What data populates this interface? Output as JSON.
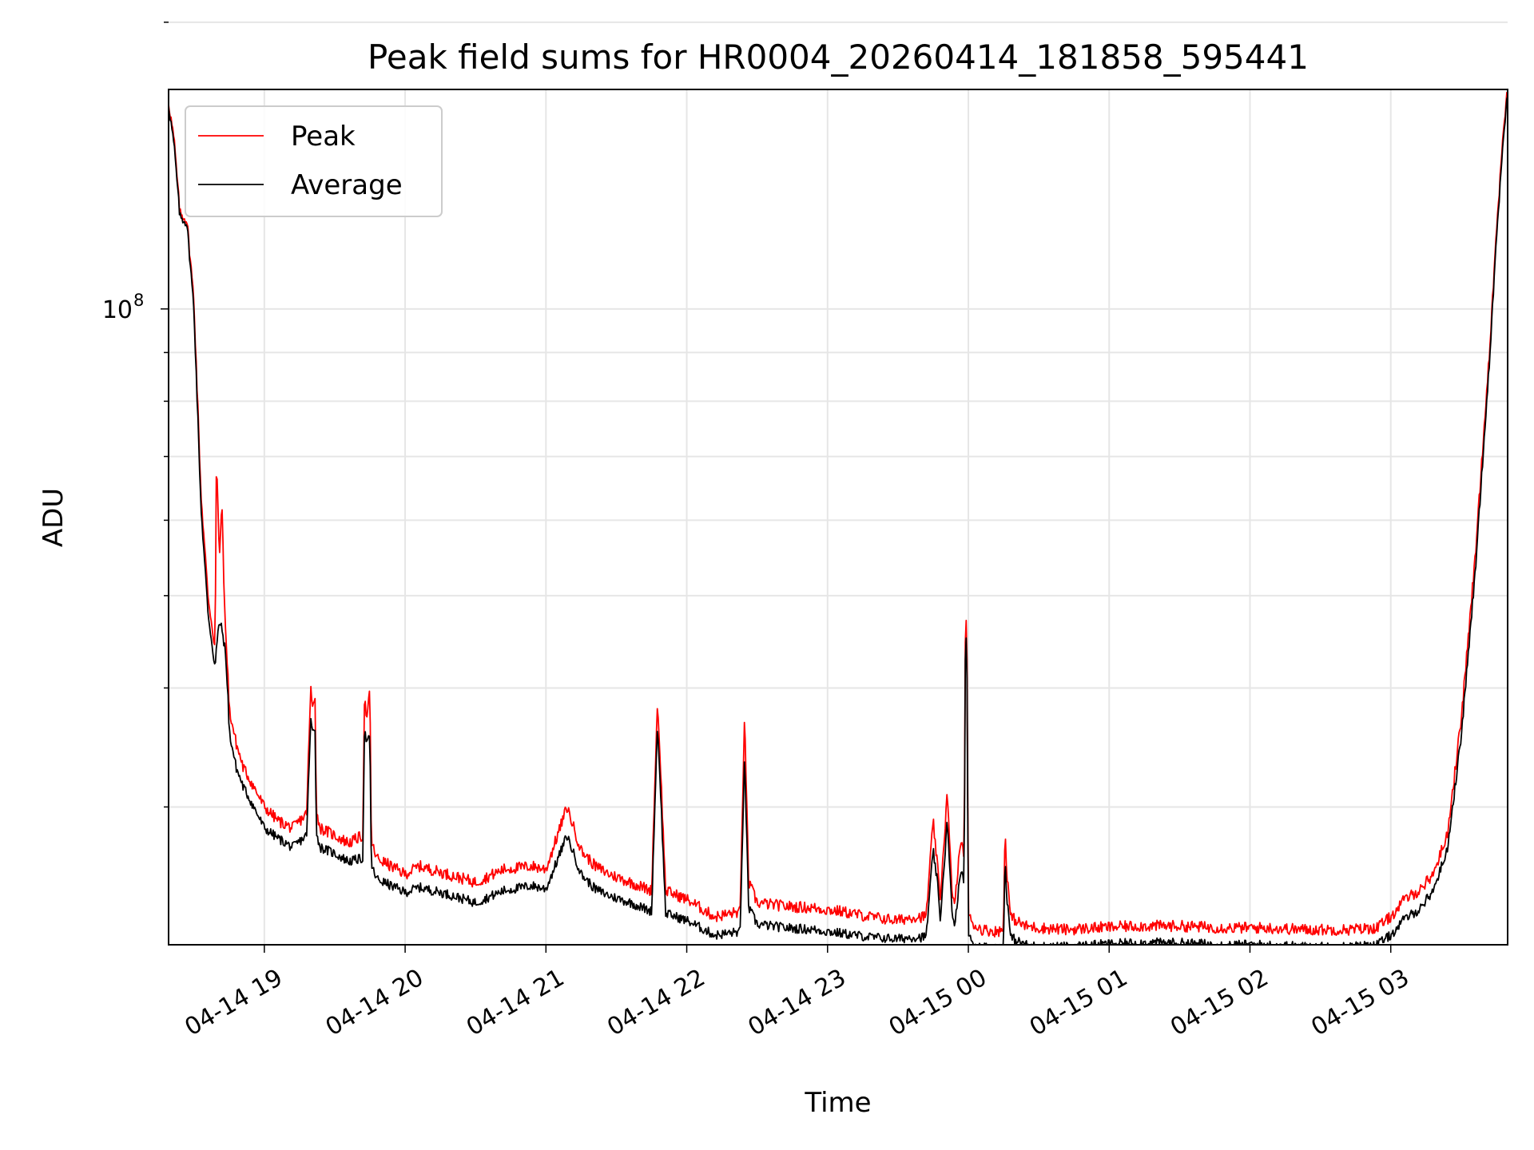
{
  "chart_data": {
    "type": "line",
    "title": "Peak field sums for HR0004_20260414_181858_595441",
    "xlabel": "Time",
    "ylabel": "ADU",
    "yscale": "log",
    "ylim": [
      21500000,
      170000000
    ],
    "xlim_hours": [
      18.32,
      27.83
    ],
    "grid": true,
    "legend_position": "upper-left",
    "x_ticks": [
      {
        "hour": 19,
        "label": "04-14 19"
      },
      {
        "hour": 20,
        "label": "04-14 20"
      },
      {
        "hour": 21,
        "label": "04-14 21"
      },
      {
        "hour": 22,
        "label": "04-14 22"
      },
      {
        "hour": 23,
        "label": "04-14 23"
      },
      {
        "hour": 24,
        "label": "04-15 00"
      },
      {
        "hour": 25,
        "label": "04-15 01"
      },
      {
        "hour": 26,
        "label": "04-15 02"
      },
      {
        "hour": 27,
        "label": "04-15 03"
      }
    ],
    "y_major_ticks": [
      {
        "value": 100000000,
        "label": "10",
        "exponent": "8"
      }
    ],
    "y_minor_ticks": [
      30000000,
      40000000,
      50000000,
      60000000,
      70000000,
      80000000,
      90000000,
      200000000
    ],
    "series": [
      {
        "name": "Peak",
        "color": "#ff0000",
        "x_hours": [
          18.32,
          18.36,
          18.4,
          18.45,
          18.5,
          18.55,
          18.6,
          18.65,
          18.66,
          18.68,
          18.7,
          18.72,
          18.74,
          18.75,
          18.8,
          18.85,
          18.9,
          19.0,
          19.1,
          19.2,
          19.3,
          19.33,
          19.34,
          19.36,
          19.37,
          19.4,
          19.5,
          19.6,
          19.7,
          19.71,
          19.73,
          19.75,
          19.76,
          19.8,
          19.9,
          20.0,
          20.1,
          20.3,
          20.5,
          20.7,
          20.9,
          21.0,
          21.15,
          21.25,
          21.35,
          21.45,
          21.6,
          21.75,
          21.79,
          21.8,
          21.85,
          22.0,
          22.2,
          22.38,
          22.41,
          22.44,
          22.5,
          22.7,
          22.9,
          23.1,
          23.3,
          23.5,
          23.6,
          23.7,
          23.75,
          23.78,
          23.8,
          23.85,
          23.88,
          23.9,
          23.95,
          23.97,
          23.98,
          23.99,
          24.0,
          24.05,
          24.1,
          24.2,
          24.25,
          24.26,
          24.27,
          24.3,
          24.4,
          24.5,
          24.7,
          24.9,
          25.2,
          25.5,
          25.8,
          26.1,
          26.4,
          26.7,
          26.9,
          27.0,
          27.1,
          27.2,
          27.3,
          27.4,
          27.5,
          27.6,
          27.7,
          27.75,
          27.8,
          27.83
        ],
        "y": [
          165000000,
          150000000,
          126000000,
          124000000,
          102000000,
          64000000,
          50000000,
          44000000,
          70000000,
          55000000,
          62000000,
          47000000,
          42000000,
          38000000,
          35000000,
          33000000,
          32000000,
          30000000,
          29000000,
          28500000,
          29500000,
          40000000,
          38000000,
          39500000,
          29500000,
          28500000,
          28000000,
          27500000,
          28000000,
          39000000,
          37000000,
          40000000,
          27500000,
          26500000,
          26000000,
          25500000,
          26000000,
          25500000,
          25000000,
          25800000,
          26000000,
          25800000,
          30000000,
          27000000,
          26000000,
          25500000,
          25000000,
          24500000,
          38000000,
          37000000,
          24500000,
          24000000,
          23000000,
          23300000,
          37500000,
          25000000,
          23800000,
          23600000,
          23500000,
          23300000,
          23000000,
          22800000,
          23000000,
          23000000,
          29000000,
          26000000,
          24000000,
          31000000,
          25000000,
          23500000,
          28000000,
          26000000,
          50000000,
          44000000,
          23000000,
          22500000,
          22300000,
          22200000,
          22300000,
          29000000,
          26000000,
          23000000,
          22500000,
          22400000,
          22300000,
          22400000,
          22500000,
          22500000,
          22400000,
          22400000,
          22300000,
          22300000,
          22400000,
          23000000,
          24000000,
          24500000,
          25500000,
          28000000,
          37000000,
          55000000,
          90000000,
          120000000,
          155000000,
          170000000
        ]
      },
      {
        "name": "Average",
        "color": "#000000",
        "x_hours": [
          18.32,
          18.36,
          18.4,
          18.45,
          18.5,
          18.55,
          18.6,
          18.65,
          18.66,
          18.68,
          18.7,
          18.72,
          18.74,
          18.75,
          18.8,
          18.85,
          18.9,
          19.0,
          19.1,
          19.2,
          19.3,
          19.33,
          19.34,
          19.36,
          19.37,
          19.4,
          19.5,
          19.6,
          19.7,
          19.71,
          19.73,
          19.75,
          19.76,
          19.8,
          19.9,
          20.0,
          20.1,
          20.3,
          20.5,
          20.7,
          20.9,
          21.0,
          21.15,
          21.25,
          21.35,
          21.45,
          21.6,
          21.75,
          21.79,
          21.8,
          21.85,
          22.0,
          22.2,
          22.38,
          22.41,
          22.44,
          22.5,
          22.7,
          22.9,
          23.1,
          23.3,
          23.5,
          23.6,
          23.7,
          23.75,
          23.78,
          23.8,
          23.85,
          23.88,
          23.9,
          23.95,
          23.97,
          23.98,
          23.99,
          24.0,
          24.05,
          24.1,
          24.2,
          24.25,
          24.26,
          24.27,
          24.3,
          24.4,
          24.5,
          24.7,
          24.9,
          25.2,
          25.5,
          25.8,
          26.1,
          26.4,
          26.7,
          26.9,
          27.0,
          27.1,
          27.2,
          27.3,
          27.4,
          27.5,
          27.6,
          27.7,
          27.75,
          27.8,
          27.83
        ],
        "y": [
          164000000,
          148000000,
          125000000,
          123000000,
          100000000,
          62000000,
          48000000,
          42000000,
          44000000,
          47000000,
          46000000,
          44000000,
          40000000,
          36000000,
          33000000,
          31500000,
          30500000,
          28500000,
          27800000,
          27200000,
          28000000,
          37000000,
          36000000,
          36500000,
          28000000,
          27200000,
          26800000,
          26300000,
          26500000,
          36000000,
          35000000,
          35500000,
          26000000,
          25200000,
          24800000,
          24400000,
          24700000,
          24300000,
          23800000,
          24500000,
          24800000,
          24600000,
          28000000,
          25500000,
          24600000,
          24200000,
          23800000,
          23300000,
          36000000,
          35000000,
          23200000,
          22800000,
          22000000,
          22200000,
          34000000,
          23500000,
          22600000,
          22400000,
          22300000,
          22100000,
          21900000,
          21800000,
          21900000,
          21900000,
          27000000,
          25000000,
          22800000,
          29000000,
          23800000,
          22300000,
          26000000,
          24500000,
          48000000,
          42000000,
          21900000,
          21500000,
          21400000,
          21300000,
          21400000,
          27000000,
          24500000,
          21900000,
          21500000,
          21400000,
          21400000,
          21500000,
          21600000,
          21600000,
          21500000,
          21500000,
          21400000,
          21400000,
          21500000,
          22000000,
          22900000,
          23400000,
          24500000,
          27000000,
          35500000,
          53000000,
          88000000,
          118000000,
          152000000,
          168000000
        ]
      }
    ]
  }
}
